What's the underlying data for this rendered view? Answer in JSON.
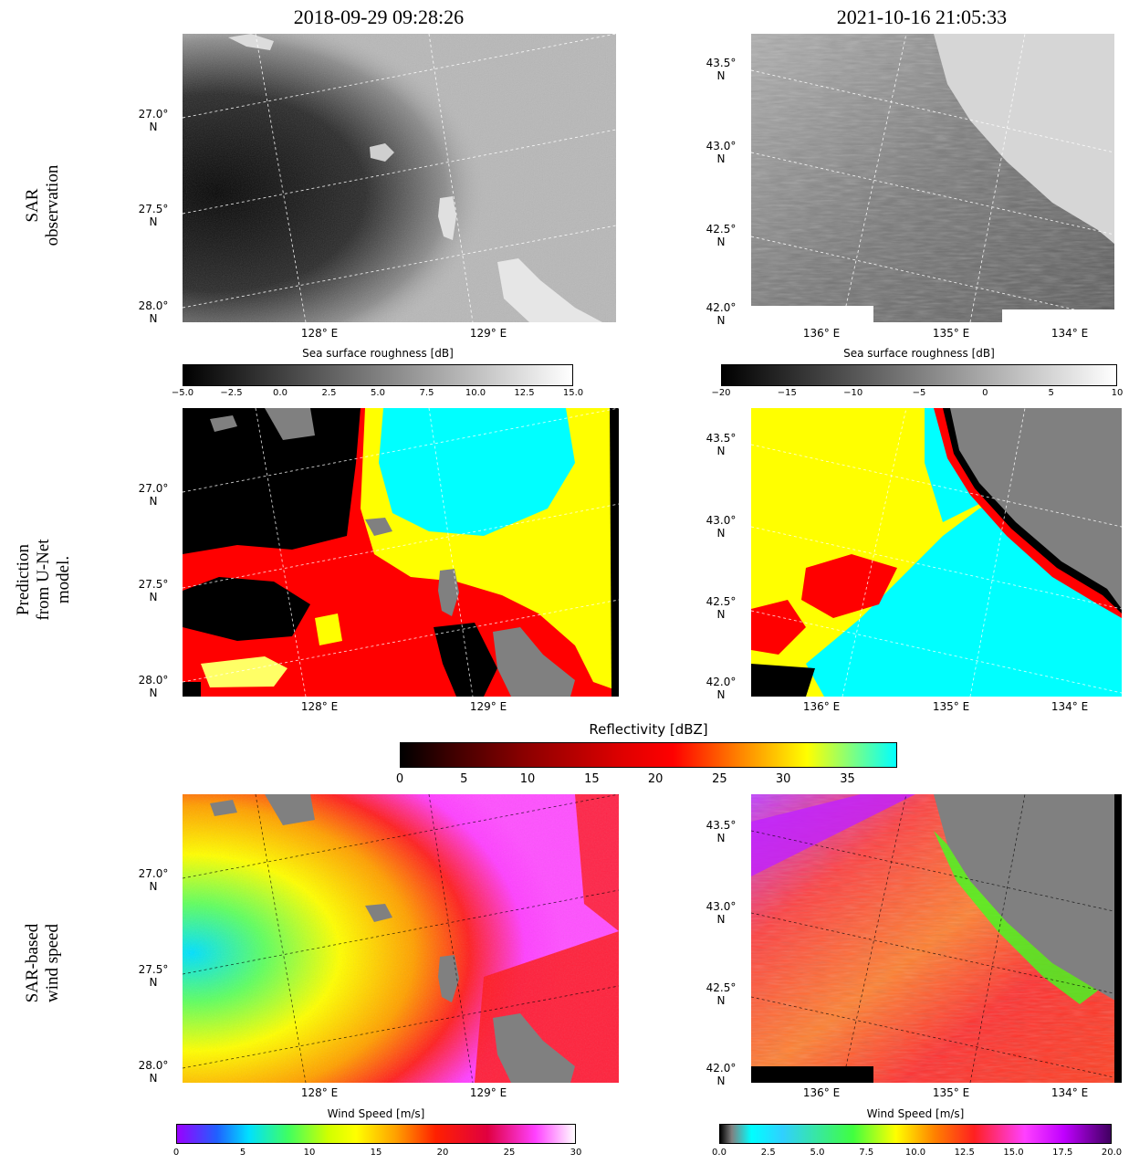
{
  "columns": [
    {
      "title": "2018-09-29 09:28:26",
      "lat_labels": [
        {
          "deg": "27.0°",
          "hemi": "N"
        },
        {
          "deg": "27.5°",
          "hemi": "N"
        },
        {
          "deg": "28.0°",
          "hemi": "N"
        }
      ],
      "lon_labels": [
        "128° E",
        "129° E"
      ]
    },
    {
      "title": "2021-10-16 21:05:33",
      "lat_labels": [
        {
          "deg": "43.5°",
          "hemi": "N"
        },
        {
          "deg": "43.0°",
          "hemi": "N"
        },
        {
          "deg": "42.5°",
          "hemi": "N"
        },
        {
          "deg": "42.0°",
          "hemi": "N"
        }
      ],
      "lon_labels": [
        "136° E",
        "135° E",
        "134° E"
      ]
    }
  ],
  "rows": [
    {
      "label_line1": "SAR",
      "label_line2": "observation",
      "label_line3": ""
    },
    {
      "label_line1": "Prediction",
      "label_line2": "from U-Net",
      "label_line3": "model."
    },
    {
      "label_line1": "SAR-based",
      "label_line2": "wind speed",
      "label_line3": ""
    }
  ],
  "colorbars": {
    "roughness_left": {
      "title": "Sea surface roughness [dB]",
      "ticks": [
        "−5.0",
        "−2.5",
        "0.0",
        "2.5",
        "5.0",
        "7.5",
        "10.0",
        "12.5",
        "15.0"
      ]
    },
    "roughness_right": {
      "title": "Sea surface roughness [dB]",
      "ticks": [
        "−20",
        "−15",
        "−10",
        "−5",
        "0",
        "5",
        "10"
      ]
    },
    "reflectivity": {
      "title": "Reflectivity [dBZ]",
      "ticks": [
        "0",
        "5",
        "10",
        "15",
        "20",
        "25",
        "30",
        "35"
      ]
    },
    "wind_left": {
      "title": "Wind Speed [m/s]",
      "ticks": [
        "0",
        "5",
        "10",
        "15",
        "20",
        "25",
        "30"
      ]
    },
    "wind_right": {
      "title": "Wind Speed [m/s]",
      "ticks": [
        "0.0",
        "2.5",
        "5.0",
        "7.5",
        "10.0",
        "12.5",
        "15.0",
        "17.5",
        "20.0"
      ]
    }
  },
  "colors": {
    "land": "#808080",
    "refl_low": "#000000",
    "refl_mid": "#ff0000",
    "refl_high": "#ffff00",
    "refl_max": "#00ffff",
    "wind_mid": "#ff40ff"
  }
}
